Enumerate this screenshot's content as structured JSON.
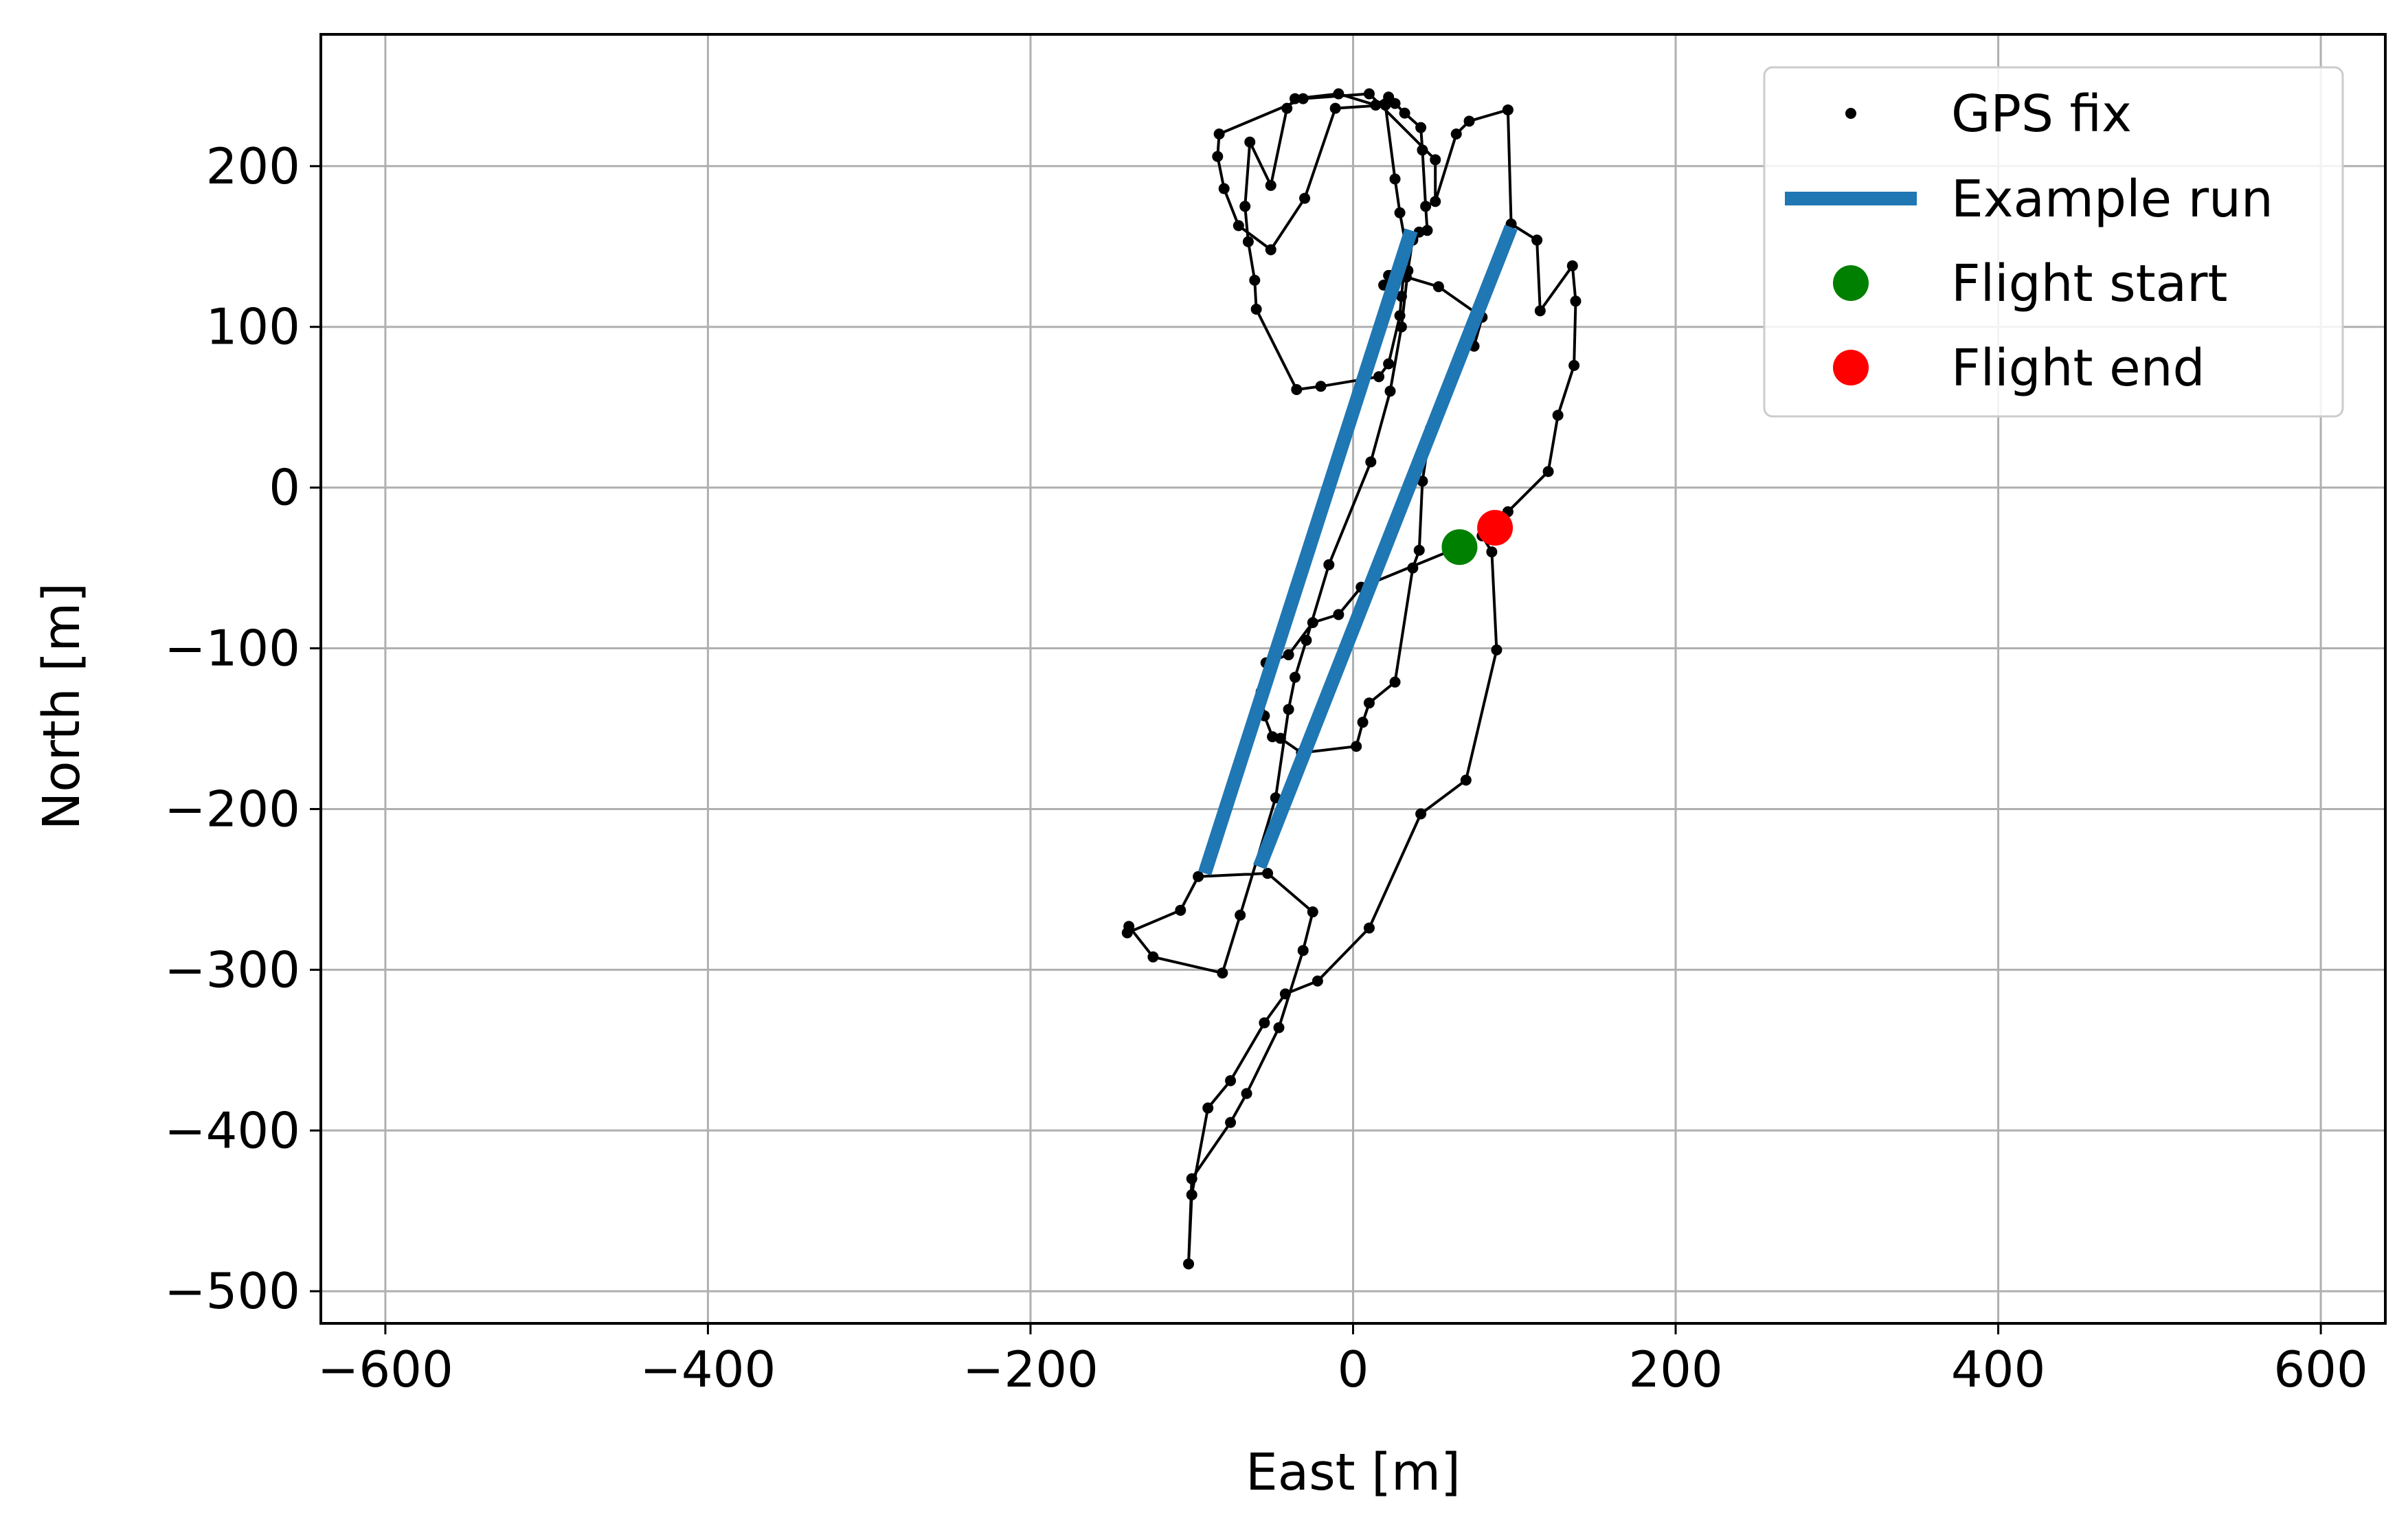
{
  "chart_data": {
    "type": "scatter",
    "title": "",
    "xlabel": "East [m]",
    "ylabel": "North [m]",
    "xlim": [
      -640,
      640
    ],
    "ylim": [
      -520,
      282
    ],
    "xticks": [
      -600,
      -400,
      -200,
      0,
      200,
      400,
      600
    ],
    "yticks": [
      -500,
      -400,
      -300,
      -200,
      -100,
      0,
      100,
      200
    ],
    "xtick_labels": [
      "−600",
      "−400",
      "−200",
      "0",
      "200",
      "400",
      "600"
    ],
    "ytick_labels": [
      "−500",
      "−400",
      "−300",
      "−200",
      "−100",
      "0",
      "100",
      "200"
    ],
    "grid": true,
    "legend_position": "top-right",
    "colors": {
      "gps": "#000000",
      "run": "#1f77b4",
      "start": "#008000",
      "end": "#ff0000",
      "grid": "#b0b0b0"
    },
    "series": [
      {
        "name": "GPS fix",
        "kind": "line+markers",
        "points": [
          [
            66,
            -37
          ],
          [
            5,
            -62
          ],
          [
            -9,
            -79
          ],
          [
            -25,
            -84
          ],
          [
            -40,
            -104
          ],
          [
            -54,
            -109
          ],
          [
            -57,
            -127
          ],
          [
            -55,
            -142
          ],
          [
            -50,
            -155
          ],
          [
            -45,
            -156
          ],
          [
            -32,
            -165
          ],
          [
            2,
            -161
          ],
          [
            6,
            -146
          ],
          [
            10,
            -134
          ],
          [
            26,
            -121
          ],
          [
            37,
            -50
          ],
          [
            41,
            -39
          ],
          [
            43,
            4
          ],
          [
            48,
            37
          ],
          [
            61,
            67
          ],
          [
            67,
            83
          ],
          [
            75,
            88
          ],
          [
            80,
            106
          ],
          [
            53,
            125
          ],
          [
            33,
            131
          ],
          [
            24,
            132
          ],
          [
            19,
            126
          ],
          [
            22,
            132
          ],
          [
            30,
            141
          ],
          [
            37,
            154
          ],
          [
            41,
            159
          ],
          [
            46,
            160
          ],
          [
            45,
            175
          ],
          [
            43,
            210
          ],
          [
            42,
            224
          ],
          [
            32,
            233
          ],
          [
            26,
            239
          ],
          [
            22,
            243
          ],
          [
            14,
            238
          ],
          [
            -9,
            245
          ],
          [
            -36,
            242
          ],
          [
            -41,
            236
          ],
          [
            -51,
            188
          ],
          [
            -64,
            215
          ],
          [
            -67,
            175
          ],
          [
            -65,
            153
          ],
          [
            -61,
            129
          ],
          [
            -60,
            111
          ],
          [
            -35,
            61
          ],
          [
            -20,
            63
          ],
          [
            16,
            69
          ],
          [
            22,
            77
          ],
          [
            29,
            107
          ],
          [
            30,
            119
          ],
          [
            33,
            149
          ],
          [
            29,
            171
          ],
          [
            26,
            192
          ],
          [
            20,
            238
          ],
          [
            -11,
            236
          ],
          [
            -30,
            180
          ],
          [
            -51,
            148
          ],
          [
            -71,
            163
          ],
          [
            -80,
            186
          ],
          [
            -84,
            206
          ],
          [
            -83,
            220
          ],
          [
            -31,
            242
          ],
          [
            10,
            245
          ],
          [
            51,
            204
          ],
          [
            51,
            178
          ],
          [
            64,
            220
          ],
          [
            72,
            228
          ],
          [
            96,
            235
          ],
          [
            98,
            164
          ],
          [
            114,
            154
          ],
          [
            116,
            110
          ],
          [
            136,
            138
          ],
          [
            138,
            116
          ],
          [
            137,
            76
          ],
          [
            127,
            45
          ],
          [
            121,
            10
          ],
          [
            96,
            -15
          ],
          [
            80,
            -30
          ],
          [
            86,
            -40
          ],
          [
            89,
            -101
          ],
          [
            70,
            -182
          ],
          [
            42,
            -203
          ],
          [
            10,
            -274
          ],
          [
            -22,
            -307
          ],
          [
            -42,
            -315
          ],
          [
            -55,
            -333
          ],
          [
            -76,
            -369
          ],
          [
            -90,
            -386
          ],
          [
            -100,
            -440
          ],
          [
            -102,
            -483
          ],
          [
            -100,
            -430
          ],
          [
            -76,
            -395
          ],
          [
            -66,
            -377
          ],
          [
            -46,
            -336
          ],
          [
            -31,
            -288
          ],
          [
            -25,
            -264
          ],
          [
            -53,
            -240
          ],
          [
            -96,
            -242
          ],
          [
            -107,
            -263
          ],
          [
            -140,
            -277
          ],
          [
            -139,
            -273
          ],
          [
            -124,
            -292
          ],
          [
            -81,
            -302
          ],
          [
            -70,
            -266
          ],
          [
            -48,
            -193
          ],
          [
            -40,
            -138
          ],
          [
            -36,
            -118
          ],
          [
            -29,
            -95
          ],
          [
            -15,
            -48
          ],
          [
            11,
            16
          ],
          [
            23,
            60
          ],
          [
            30,
            100
          ],
          [
            34,
            135
          ],
          [
            37,
            155
          ]
        ]
      },
      {
        "name": "Example run",
        "kind": "segments",
        "segments": [
          [
            [
              -92,
              -240
            ],
            [
              36,
              160
            ]
          ],
          [
            [
              -58,
              -236
            ],
            [
              98,
              162
            ]
          ]
        ]
      },
      {
        "name": "Flight start",
        "kind": "marker",
        "x": 66,
        "y": -37
      },
      {
        "name": "Flight end",
        "kind": "marker",
        "x": 88,
        "y": -25
      }
    ],
    "legend": [
      {
        "label": "GPS fix",
        "symbol": "dot"
      },
      {
        "label": "Example run",
        "symbol": "line"
      },
      {
        "label": "Flight start",
        "symbol": "circle-green"
      },
      {
        "label": "Flight end",
        "symbol": "circle-red"
      }
    ]
  }
}
